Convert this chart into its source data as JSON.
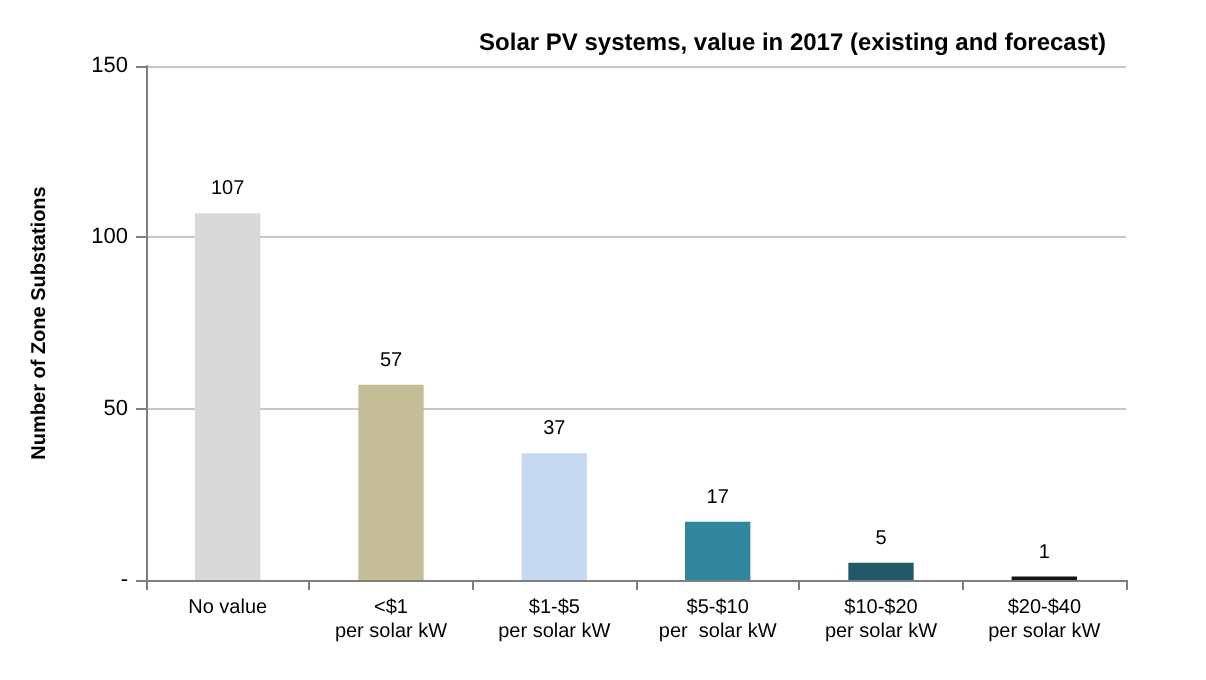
{
  "chart_data": {
    "type": "bar",
    "title": "Solar PV systems, value in 2017 (existing and forecast)",
    "ylabel": "Number of Zone Substations",
    "categories": [
      "No value",
      "<$1\nper solar kW",
      "$1-$5\nper solar kW",
      "$5-$10\nper  solar kW",
      "$10-$20\nper solar kW",
      "$20-$40\nper solar kW"
    ],
    "values": [
      107,
      57,
      37,
      17,
      5,
      1
    ],
    "colors": [
      "#d9d9d9",
      "#c4bd97",
      "#c6d9f1",
      "#31859c",
      "#215968",
      "#141414"
    ],
    "ylim": [
      0,
      150
    ],
    "yticks": [
      {
        "value": 0,
        "label": "-"
      },
      50,
      100,
      150
    ],
    "grid": "y",
    "data_labels": true
  }
}
